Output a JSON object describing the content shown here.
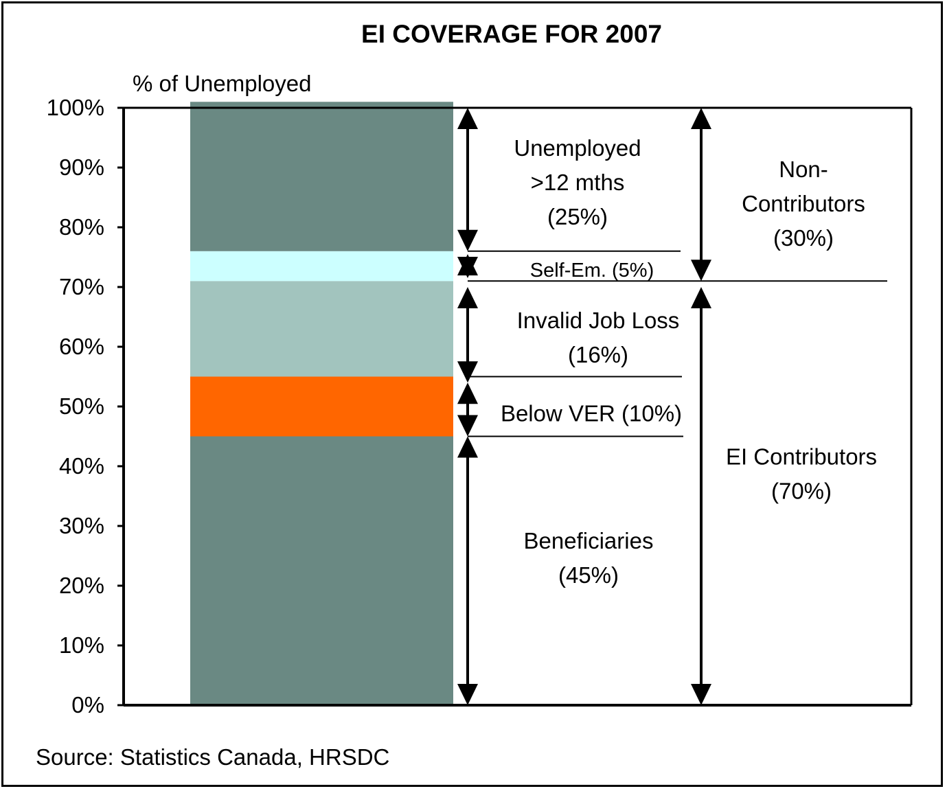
{
  "chart_data": {
    "type": "bar",
    "title": "EI COVERAGE FOR 2007",
    "ylabel": "% of Unemployed",
    "ylim": [
      0,
      100
    ],
    "yticks": [
      "0%",
      "10%",
      "20%",
      "30%",
      "40%",
      "50%",
      "60%",
      "70%",
      "80%",
      "90%",
      "100%"
    ],
    "grid": false,
    "segments": [
      {
        "name": "Beneficiaries",
        "value": 45,
        "color": "#6a8983"
      },
      {
        "name": "Below VER",
        "value": 10,
        "color": "#ff6600"
      },
      {
        "name": "Invalid Job Loss",
        "value": 16,
        "color": "#a2c4be"
      },
      {
        "name": "Self-Em.",
        "value": 5,
        "color": "#ccffff"
      },
      {
        "name": "Unemployed >12 mths",
        "value": 25,
        "color": "#6a8983"
      }
    ],
    "annotations": {
      "unemployed_12": [
        "Unemployed",
        ">12 mths",
        "(25%)"
      ],
      "self_em": [
        "Self-Em. (5%)"
      ],
      "invalid": [
        "Invalid Job Loss",
        "(16%)"
      ],
      "below_ver": [
        "Below VER (10%)"
      ],
      "beneficiaries": [
        "Beneficiaries",
        "(45%)"
      ],
      "non_contributors": [
        "Non-",
        "Contributors",
        "(30%)"
      ],
      "ei_contributors": [
        "EI Contributors",
        "(70%)"
      ]
    },
    "groups": [
      {
        "name": "Non-Contributors",
        "value": 30
      },
      {
        "name": "EI Contributors",
        "value": 70
      }
    ]
  },
  "source": "Source: Statistics Canada, HRSDC"
}
